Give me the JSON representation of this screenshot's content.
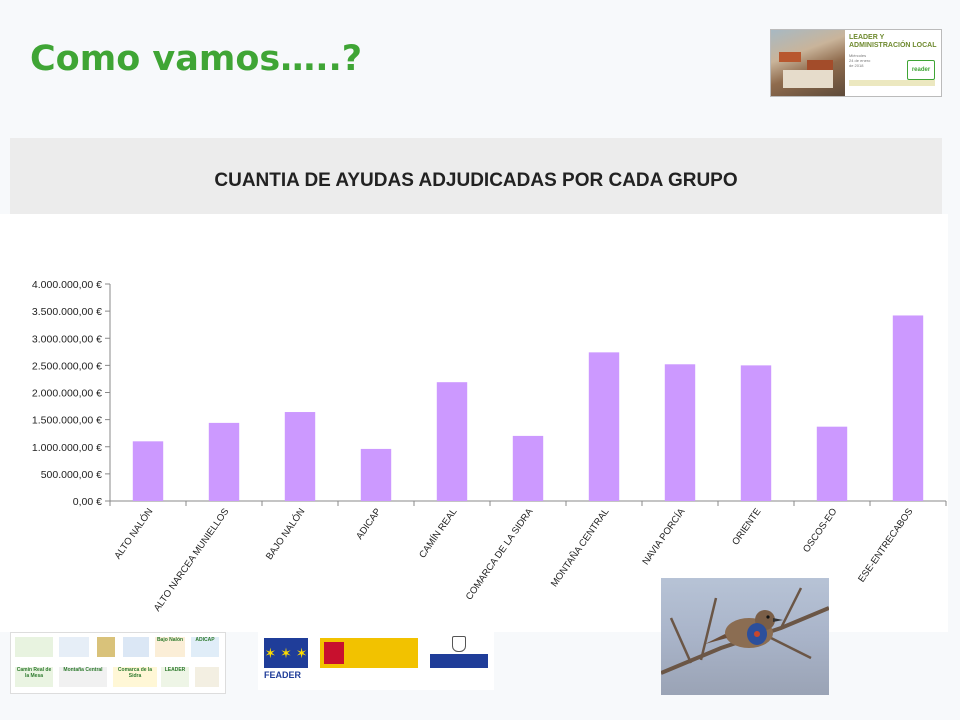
{
  "slide": {
    "title": "Como vamos…..?"
  },
  "banner": {
    "title": "LEADER Y\nADMINISTRACIÓN LOCAL",
    "subtitle": "Miércoles\n24 de enero\nde 2018",
    "logo_text": "reader"
  },
  "chart": {
    "panel_title": "CUANTIA DE AYUDAS ADJUDICADAS POR CADA GRUPO"
  },
  "chart_data": {
    "type": "bar",
    "title": "CUANTIA DE AYUDAS ADJUDICADAS POR CADA GRUPO",
    "xlabel": "",
    "ylabel": "",
    "categories": [
      "ALTO NALÓN",
      "ALTO NARCEA MUNIELLOS",
      "BAJO NALÓN",
      "ADICAP",
      "CAMÍN REAL",
      "COMARCA DE LA SIDRA",
      "MONTAÑA CENTRAL",
      "NAVIA PORCÍA",
      "ORIENTE",
      "OSCOS-EO",
      "ESE-ENTRECABOS"
    ],
    "values": [
      1100000,
      1440000,
      1640000,
      960000,
      2190000,
      1200000,
      2740000,
      2520000,
      2500000,
      1370000,
      3420000
    ],
    "ylim": [
      0,
      4000000
    ],
    "yticks": [
      0,
      500000,
      1000000,
      1500000,
      2000000,
      2500000,
      3000000,
      3500000,
      4000000
    ],
    "ytick_labels": [
      "0,00 €",
      "500.000,00 €",
      "1.000.000,00 €",
      "1.500.000,00 €",
      "2.000.000,00 €",
      "2.500.000,00 €",
      "3.000.000,00 €",
      "3.500.000,00 €",
      "4.000.000,00 €"
    ],
    "bar_color": "#cc99ff",
    "grid": false,
    "legend": "none"
  },
  "footer": {
    "feader_label": "FEADER",
    "logos": [
      "Camín Real de la Mesa",
      "Montaña Central",
      "Comarca de la Sidra",
      "LEADER",
      "ADICAP",
      "Bajo Nalón"
    ]
  },
  "colors": {
    "title_green": "#3fa535",
    "panel_gray": "#ececec"
  }
}
